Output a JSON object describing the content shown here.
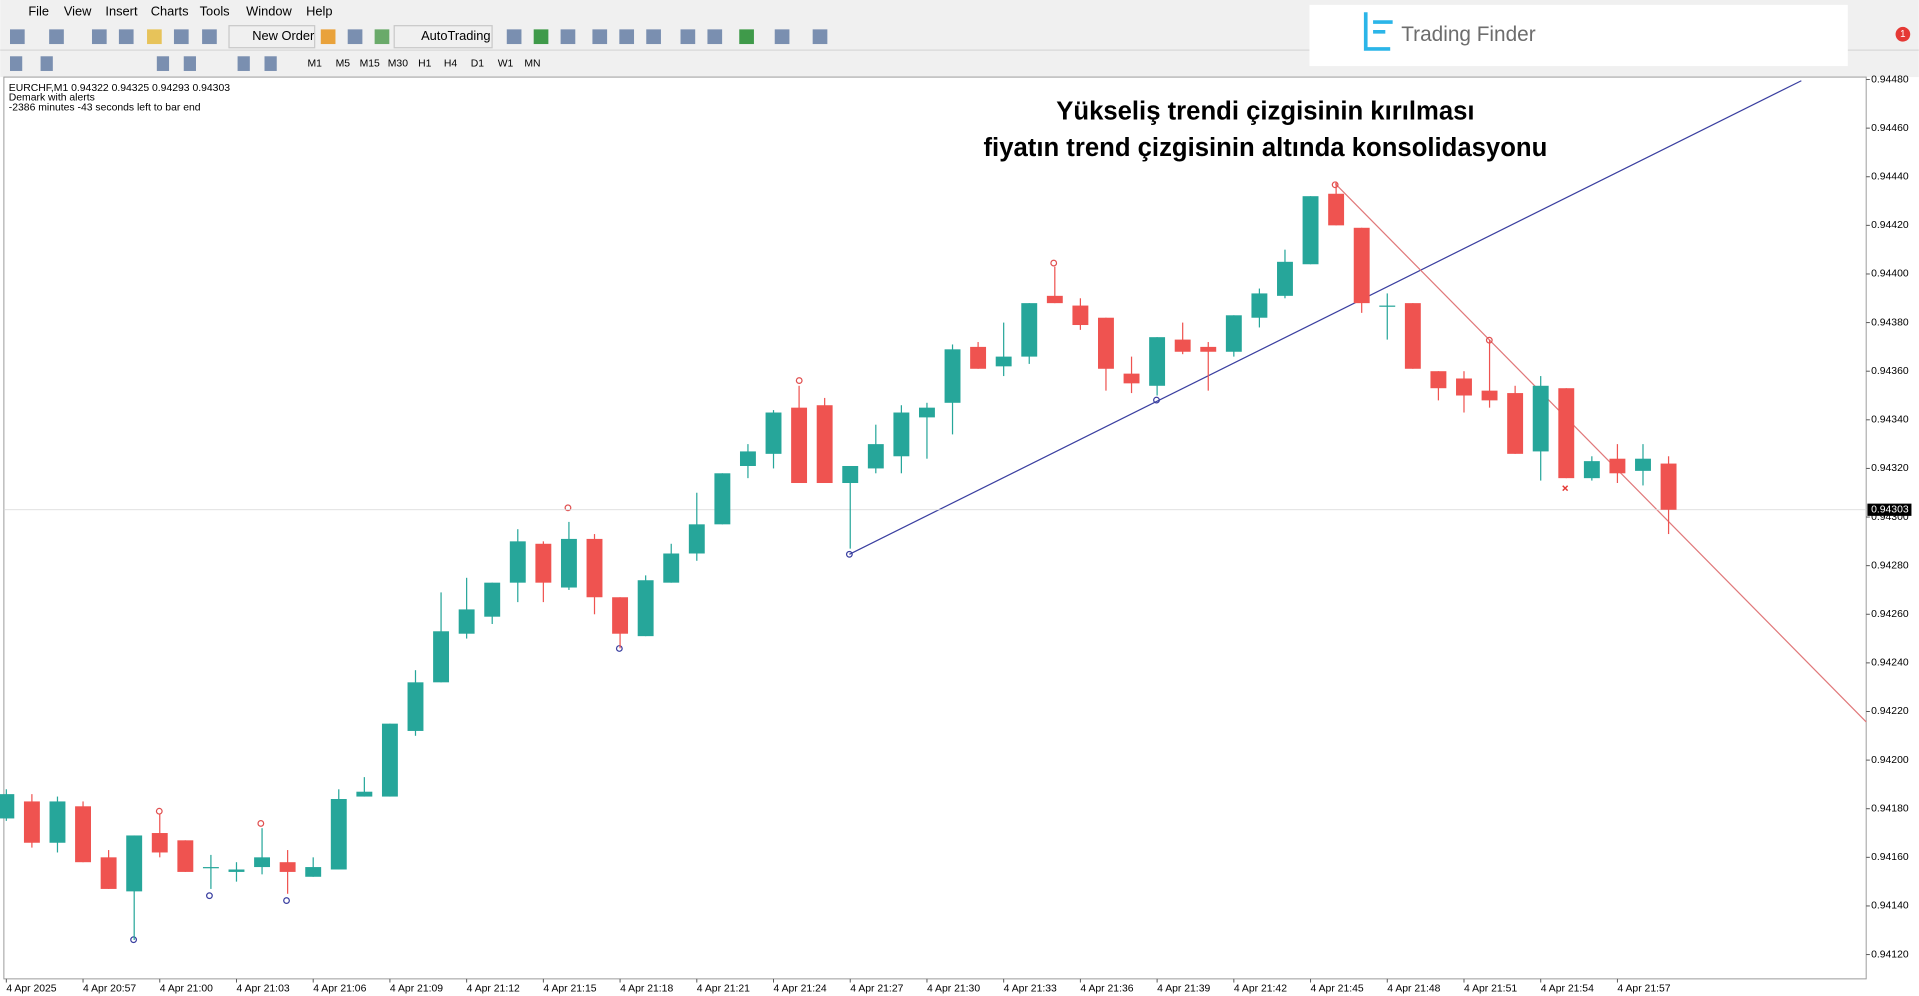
{
  "menu": [
    "File",
    "View",
    "Insert",
    "Charts",
    "Tools",
    "Window",
    "Help"
  ],
  "toolbar": {
    "new_order": "New Order",
    "auto_trading": "AutoTrading",
    "timeframes": [
      "M1",
      "M5",
      "M15",
      "M30",
      "H1",
      "H4",
      "D1",
      "W1",
      "MN"
    ]
  },
  "logo": "Trading Finder",
  "notifications": "1",
  "chart_data": {
    "type": "candlestick",
    "symbol_info": "EURCHF,M1  0.94322 0.94325 0.94293 0.94303",
    "indicator": "Demark with alerts",
    "timer": "-2386 minutes -43 seconds left to bar end",
    "annotations": [
      "Yükseliş trendi çizgisinin kırılması",
      "fiyatın trend çizgisinin altında konsolidasyonu"
    ],
    "categories": [
      "4 Apr 2025",
      null,
      null,
      "4 Apr 20:57",
      null,
      null,
      "4 Apr 21:00",
      null,
      null,
      "4 Apr 21:03",
      null,
      null,
      "4 Apr 21:06",
      null,
      null,
      "4 Apr 21:09",
      null,
      null,
      "4 Apr 21:12",
      null,
      null,
      "4 Apr 21:15",
      null,
      null,
      "4 Apr 21:18",
      null,
      null,
      "4 Apr 21:21",
      null,
      null,
      "4 Apr 21:24",
      null,
      null,
      "4 Apr 21:27",
      null,
      null,
      "4 Apr 21:30",
      null,
      null,
      "4 Apr 21:33",
      null,
      null,
      "4 Apr 21:36",
      null,
      null,
      "4 Apr 21:39",
      null,
      null,
      "4 Apr 21:42",
      null,
      null,
      "4 Apr 21:45",
      null,
      null,
      "4 Apr 21:48",
      null,
      null,
      "4 Apr 21:51",
      null,
      null,
      "4 Apr 21:54",
      null,
      null,
      "4 Apr 21:57",
      null,
      null
    ],
    "open": [
      0.94176,
      0.94183,
      0.94166,
      0.94181,
      0.9416,
      0.94146,
      0.9417,
      0.94167,
      0.94156,
      0.94154,
      0.94156,
      0.94158,
      0.94152,
      0.94155,
      0.94185,
      0.94185,
      0.94212,
      0.94232,
      0.94252,
      0.94259,
      0.94273,
      0.94289,
      0.94271,
      0.94291,
      0.94267,
      0.94251,
      0.94273,
      0.94285,
      0.94297,
      0.94321,
      0.94326,
      0.94345,
      0.94346,
      0.94314,
      0.9432,
      0.94325,
      0.94341,
      0.94347,
      0.9437,
      0.94362,
      0.94366,
      0.94391,
      0.94387,
      0.94382,
      0.94359,
      0.94354,
      0.94373,
      0.9437,
      0.94368,
      0.94382,
      0.94391,
      0.94404,
      0.94433,
      0.94419,
      0.94387,
      0.94388,
      0.9436,
      0.94357,
      0.94352,
      0.94351,
      0.94327,
      0.94353,
      0.94316,
      0.94324,
      0.94319,
      0.94322
    ],
    "high": [
      0.94188,
      0.94186,
      0.94185,
      0.94183,
      0.94163,
      0.94169,
      0.94178,
      0.94167,
      0.94161,
      0.94158,
      0.94172,
      0.94163,
      0.9416,
      0.94188,
      0.94193,
      0.94215,
      0.94237,
      0.94269,
      0.94275,
      0.94273,
      0.94295,
      0.9429,
      0.94298,
      0.94293,
      0.94267,
      0.94276,
      0.94289,
      0.9431,
      0.94318,
      0.9433,
      0.94344,
      0.94354,
      0.94349,
      0.94321,
      0.94338,
      0.94346,
      0.94347,
      0.94371,
      0.94372,
      0.9438,
      0.94388,
      0.94403,
      0.9439,
      0.94382,
      0.94366,
      0.94374,
      0.9438,
      0.94372,
      0.94383,
      0.94394,
      0.9441,
      0.94432,
      0.94438,
      0.94419,
      0.94392,
      0.94388,
      0.9436,
      0.9436,
      0.94373,
      0.94354,
      0.94358,
      0.94353,
      0.94325,
      0.9433,
      0.9433,
      0.94325
    ],
    "low": [
      0.94175,
      0.94164,
      0.94162,
      0.94158,
      0.94147,
      0.94126,
      0.9416,
      0.94154,
      0.94147,
      0.9415,
      0.94153,
      0.94145,
      0.94152,
      0.94155,
      0.94185,
      0.94185,
      0.9421,
      0.94232,
      0.9425,
      0.94256,
      0.94265,
      0.94265,
      0.9427,
      0.9426,
      0.94246,
      0.94251,
      0.94273,
      0.94282,
      0.94297,
      0.94316,
      0.9432,
      0.94314,
      0.94314,
      0.94287,
      0.94318,
      0.94318,
      0.94324,
      0.94334,
      0.94361,
      0.94358,
      0.94363,
      0.94388,
      0.94377,
      0.94352,
      0.94351,
      0.9435,
      0.94367,
      0.94352,
      0.94366,
      0.94378,
      0.9439,
      0.94404,
      0.9442,
      0.94384,
      0.94373,
      0.94361,
      0.94348,
      0.94343,
      0.94345,
      0.94326,
      0.94315,
      0.94316,
      0.94315,
      0.94314,
      0.94313,
      0.94293
    ],
    "close": [
      0.94186,
      0.94166,
      0.94183,
      0.94158,
      0.94147,
      0.94169,
      0.94162,
      0.94154,
      0.94156,
      0.94155,
      0.9416,
      0.94154,
      0.94156,
      0.94184,
      0.94187,
      0.94215,
      0.94232,
      0.94253,
      0.94262,
      0.94273,
      0.9429,
      0.94273,
      0.94291,
      0.94267,
      0.94252,
      0.94274,
      0.94285,
      0.94297,
      0.94318,
      0.94327,
      0.94343,
      0.94314,
      0.94314,
      0.94321,
      0.9433,
      0.94343,
      0.94345,
      0.94369,
      0.94361,
      0.94366,
      0.94388,
      0.94388,
      0.94379,
      0.94361,
      0.94355,
      0.94374,
      0.94368,
      0.94368,
      0.94383,
      0.94392,
      0.94405,
      0.94432,
      0.9442,
      0.94388,
      0.94387,
      0.94361,
      0.94353,
      0.9435,
      0.94348,
      0.94326,
      0.94354,
      0.94316,
      0.94323,
      0.94318,
      0.94324,
      0.94303
    ],
    "up_color": "#26a69a",
    "down_color": "#ef5350",
    "last_price": 0.94303,
    "ylim": [
      0.9411,
      0.94481
    ],
    "yticks": [
      {
        "value": 0.9448,
        "label": "0.94480"
      },
      {
        "value": 0.9446,
        "label": "0.94460"
      },
      {
        "value": 0.9444,
        "label": "0.94440"
      },
      {
        "value": 0.9442,
        "label": "0.94420"
      },
      {
        "value": 0.944,
        "label": "0.94400"
      },
      {
        "value": 0.9438,
        "label": "0.94380"
      },
      {
        "value": 0.9436,
        "label": "0.94360"
      },
      {
        "value": 0.9434,
        "label": "0.94340"
      },
      {
        "value": 0.9432,
        "label": "0.94320"
      },
      {
        "value": 0.943,
        "label": "0.94300"
      },
      {
        "value": 0.9428,
        "label": "0.94280"
      },
      {
        "value": 0.9426,
        "label": "0.94260"
      },
      {
        "value": 0.9424,
        "label": "0.94240"
      },
      {
        "value": 0.9422,
        "label": "0.94220"
      },
      {
        "value": 0.942,
        "label": "0.94200"
      },
      {
        "value": 0.9418,
        "label": "0.94180"
      },
      {
        "value": 0.9416,
        "label": "0.94160"
      },
      {
        "value": 0.9414,
        "label": "0.94140"
      },
      {
        "value": 0.9412,
        "label": "0.94120"
      }
    ],
    "grid": false
  }
}
